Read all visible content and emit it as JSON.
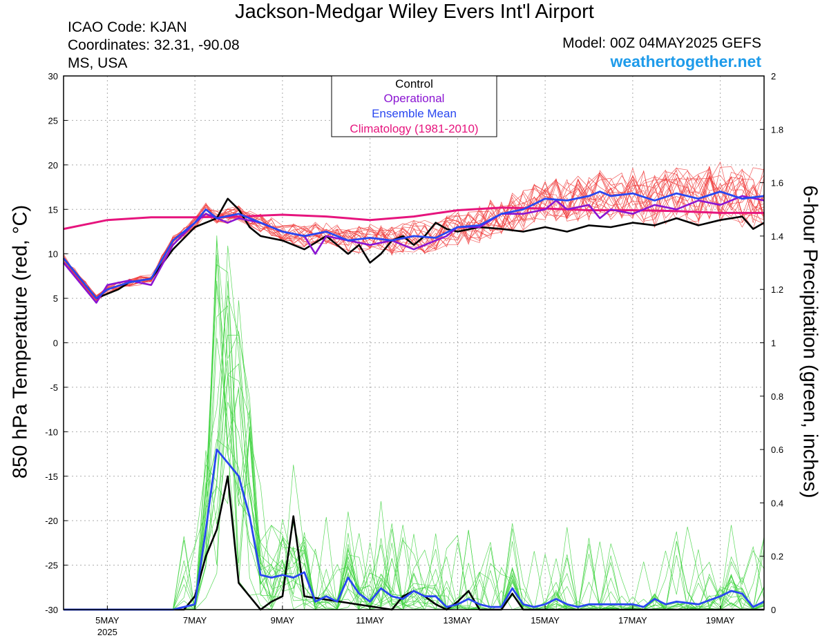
{
  "header": {
    "title": "Jackson-Medgar Wiley Evers Int'l Airport",
    "icao": "ICAO Code: KJAN",
    "coordinates": "Coordinates: 32.31, -90.08",
    "location": "MS, USA",
    "model": "Model: 00Z 04MAY2025 GEFS",
    "site": "weathertogether.net"
  },
  "colors": {
    "members_temp": "#f03c3c",
    "members_precip": "#3cd23c",
    "control": "#000000",
    "operational": "#8a14d2",
    "ensemble_mean": "#2846f0",
    "climatology": "#e6147d",
    "site": "#1e9bea"
  },
  "legend": [
    {
      "label": "Control",
      "color": "#000000"
    },
    {
      "label": "Operational",
      "color": "#8a14d2"
    },
    {
      "label": "Ensemble Mean",
      "color": "#2846f0"
    },
    {
      "label": "Climatology (1981-2010)",
      "color": "#e6147d"
    }
  ],
  "chart_data": {
    "type": "line",
    "xlabel": "",
    "ylabel": "850 hPa Temperature (red, °C)",
    "y2label": "6-hour Precipitation (green, inches)",
    "xlim_days": [
      4.0,
      20.0
    ],
    "ylim": [
      -30,
      30
    ],
    "y2lim": [
      0,
      2
    ],
    "grid": true,
    "legend_position": "top-center",
    "y_ticks": [
      -30,
      -25,
      -20,
      -15,
      -10,
      -5,
      0,
      5,
      10,
      15,
      20,
      25,
      30
    ],
    "y2_ticks": [
      "0",
      "0.2",
      "0.4",
      "0.6",
      "0.8",
      "1",
      "1.2",
      "1.4",
      "1.6",
      "1.8",
      "2"
    ],
    "x_ticks": [
      {
        "day": 5,
        "label": "5MAY",
        "sub": "2025"
      },
      {
        "day": 7,
        "label": "7MAY"
      },
      {
        "day": 9,
        "label": "9MAY"
      },
      {
        "day": 11,
        "label": "11MAY"
      },
      {
        "day": 13,
        "label": "13MAY"
      },
      {
        "day": 15,
        "label": "15MAY"
      },
      {
        "day": 17,
        "label": "17MAY"
      },
      {
        "day": 19,
        "label": "19MAY"
      }
    ],
    "series": [
      {
        "name": "Control",
        "axis": "temp",
        "x": [
          4.0,
          4.75,
          5.25,
          5.5,
          6.0,
          6.5,
          7.0,
          7.5,
          7.75,
          8.0,
          8.25,
          8.5,
          9.0,
          9.5,
          10.0,
          10.5,
          10.75,
          11.0,
          11.25,
          11.5,
          11.75,
          12.0,
          12.25,
          12.5,
          12.75,
          13.0,
          13.5,
          14.0,
          14.5,
          15.0,
          15.5,
          16.0,
          16.5,
          17.0,
          17.5,
          18.0,
          18.5,
          19.0,
          19.5,
          19.75,
          20.0
        ],
        "values": [
          9.5,
          5.0,
          6.0,
          6.8,
          7.2,
          10.5,
          13.0,
          14.0,
          16.2,
          15.0,
          13.0,
          12.0,
          11.5,
          10.5,
          12.0,
          10.0,
          11.0,
          9.0,
          10.0,
          11.5,
          12.0,
          11.0,
          12.0,
          13.5,
          12.8,
          12.5,
          13.0,
          12.8,
          12.5,
          13.0,
          12.5,
          13.2,
          13.0,
          13.5,
          13.2,
          14.0,
          13.2,
          13.8,
          14.2,
          12.8,
          13.5
        ]
      },
      {
        "name": "Operational",
        "axis": "temp",
        "x": [
          4.0,
          4.75,
          5.0,
          5.5,
          6.0,
          6.5,
          7.0,
          7.25,
          7.5,
          7.75,
          8.0,
          8.5,
          9.0,
          9.5,
          9.75,
          10.0,
          10.5,
          11.0,
          11.5,
          12.0,
          12.5,
          12.75,
          13.0,
          13.5,
          14.0,
          14.5,
          15.0,
          15.25,
          15.5,
          16.0,
          16.25,
          16.5,
          17.0,
          17.5,
          18.0,
          18.5,
          19.0,
          19.5,
          20.0
        ],
        "values": [
          9.0,
          4.5,
          6.5,
          7.0,
          6.5,
          11.0,
          13.5,
          14.5,
          14.0,
          13.5,
          14.0,
          13.5,
          12.5,
          12.0,
          10.0,
          12.0,
          11.5,
          11.0,
          11.5,
          10.5,
          11.5,
          12.0,
          13.0,
          13.0,
          14.5,
          14.5,
          15.0,
          16.0,
          15.0,
          15.5,
          14.0,
          15.0,
          14.5,
          15.5,
          15.0,
          16.0,
          15.5,
          16.5,
          16.0
        ]
      },
      {
        "name": "Ensemble Mean",
        "axis": "temp",
        "x": [
          4.0,
          4.75,
          5.0,
          5.5,
          6.0,
          6.5,
          7.0,
          7.25,
          7.5,
          8.0,
          8.5,
          9.0,
          9.5,
          10.0,
          10.5,
          11.0,
          11.5,
          12.0,
          12.5,
          13.0,
          13.5,
          14.0,
          14.5,
          15.0,
          15.5,
          16.0,
          16.25,
          16.5,
          17.0,
          17.5,
          18.0,
          18.5,
          19.0,
          19.5,
          20.0
        ],
        "values": [
          9.5,
          5.0,
          6.0,
          6.8,
          7.2,
          11.5,
          13.5,
          15.0,
          14.0,
          14.5,
          13.5,
          12.5,
          12.0,
          12.5,
          11.5,
          11.8,
          11.5,
          12.0,
          11.8,
          13.0,
          13.2,
          14.5,
          15.0,
          16.2,
          16.0,
          16.5,
          17.0,
          16.5,
          16.8,
          16.0,
          16.8,
          16.2,
          17.0,
          16.2,
          16.5
        ]
      },
      {
        "name": "Climatology (1981-2010)",
        "axis": "temp",
        "x": [
          4.0,
          5.0,
          6.0,
          7.0,
          8.0,
          9.0,
          10.0,
          11.0,
          12.0,
          13.0,
          14.0,
          15.0,
          16.0,
          17.0,
          18.0,
          19.0,
          20.0
        ],
        "values": [
          12.8,
          13.8,
          14.1,
          14.1,
          14.2,
          14.4,
          14.2,
          13.8,
          14.2,
          14.9,
          15.2,
          15.1,
          14.9,
          14.9,
          14.8,
          14.6,
          14.6
        ]
      },
      {
        "name": "Control",
        "axis": "precip",
        "x": [
          4.0,
          6.75,
          7.0,
          7.25,
          7.5,
          7.75,
          8.0,
          8.25,
          8.5,
          8.75,
          9.0,
          9.25,
          9.5,
          11.5,
          11.75,
          12.0,
          12.25,
          12.5,
          12.75,
          13.0,
          13.25,
          13.5,
          14.0,
          14.25,
          14.5,
          20.0
        ],
        "values": [
          0,
          0,
          0.05,
          0.2,
          0.3,
          0.5,
          0.1,
          0.05,
          0,
          0.03,
          0.05,
          0.35,
          0.05,
          0,
          0.05,
          0.07,
          0.05,
          0.02,
          0,
          0.03,
          0.07,
          0,
          0,
          0.06,
          0,
          0
        ]
      },
      {
        "name": "Ensemble Mean",
        "axis": "precip",
        "x": [
          4.0,
          6.5,
          7.0,
          7.25,
          7.5,
          7.75,
          8.0,
          8.25,
          8.5,
          8.75,
          9.0,
          9.25,
          9.5,
          9.75,
          10.0,
          10.25,
          10.5,
          10.75,
          11.0,
          11.25,
          11.5,
          11.75,
          12.0,
          12.25,
          12.5,
          12.75,
          13.0,
          13.25,
          13.5,
          13.75,
          14.0,
          14.25,
          14.5,
          14.75,
          15.0,
          15.25,
          15.5,
          15.75,
          16.0,
          16.5,
          17.0,
          17.25,
          17.5,
          17.75,
          18.0,
          18.5,
          19.0,
          19.25,
          19.5,
          19.75,
          20.0
        ],
        "values": [
          0,
          0,
          0.02,
          0.3,
          0.6,
          0.55,
          0.5,
          0.35,
          0.13,
          0.12,
          0.13,
          0.12,
          0.14,
          0.03,
          0.05,
          0.03,
          0.12,
          0.06,
          0.03,
          0.08,
          0.05,
          0.04,
          0.07,
          0.05,
          0.05,
          0.01,
          0.02,
          0.04,
          0.02,
          0.01,
          0.01,
          0.08,
          0.02,
          0.01,
          0.02,
          0.04,
          0.02,
          0.01,
          0.02,
          0.02,
          0.02,
          0.01,
          0.04,
          0.02,
          0.03,
          0.02,
          0.05,
          0.07,
          0.06,
          0.01,
          0.03
        ]
      }
    ]
  }
}
